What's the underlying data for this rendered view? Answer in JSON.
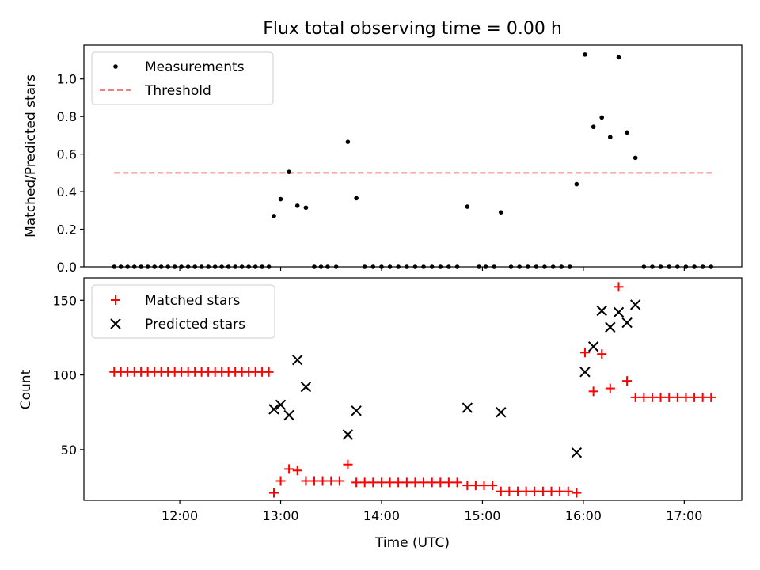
{
  "figure": {
    "title": "Flux total observing time = 0.00 h",
    "xlabel": "Time (UTC)"
  },
  "chart_data": [
    {
      "type": "scatter",
      "ylabel": "Matched/Predicted stars",
      "x_unit": "hours UTC",
      "xlim": [
        11.05,
        17.57
      ],
      "ylim": [
        0.0,
        1.18
      ],
      "yticks": [
        0.0,
        0.2,
        0.4,
        0.6,
        0.8,
        1.0
      ],
      "grid": false,
      "legend_position": "upper-left",
      "series": [
        {
          "name": "Measurements",
          "marker": "dot",
          "color": "#000000",
          "points": [
            [
              11.35,
              0.0
            ],
            [
              11.416,
              0.0
            ],
            [
              11.483,
              0.0
            ],
            [
              11.55,
              0.0
            ],
            [
              11.616,
              0.0
            ],
            [
              11.683,
              0.0
            ],
            [
              11.75,
              0.0
            ],
            [
              11.816,
              0.0
            ],
            [
              11.883,
              0.0
            ],
            [
              11.95,
              0.0
            ],
            [
              12.016,
              0.0
            ],
            [
              12.083,
              0.0
            ],
            [
              12.15,
              0.0
            ],
            [
              12.216,
              0.0
            ],
            [
              12.283,
              0.0
            ],
            [
              12.35,
              0.0
            ],
            [
              12.416,
              0.0
            ],
            [
              12.483,
              0.0
            ],
            [
              12.55,
              0.0
            ],
            [
              12.616,
              0.0
            ],
            [
              12.683,
              0.0
            ],
            [
              12.75,
              0.0
            ],
            [
              12.816,
              0.0
            ],
            [
              12.883,
              0.0
            ],
            [
              12.933,
              0.27
            ],
            [
              13.0,
              0.36
            ],
            [
              13.083,
              0.505
            ],
            [
              13.166,
              0.325
            ],
            [
              13.25,
              0.315
            ],
            [
              13.333,
              0.0
            ],
            [
              13.4,
              0.0
            ],
            [
              13.466,
              0.0
            ],
            [
              13.55,
              0.0
            ],
            [
              13.666,
              0.665
            ],
            [
              13.75,
              0.365
            ],
            [
              13.833,
              0.0
            ],
            [
              13.916,
              0.0
            ],
            [
              14.0,
              0.0
            ],
            [
              14.083,
              0.0
            ],
            [
              14.166,
              0.0
            ],
            [
              14.25,
              0.0
            ],
            [
              14.333,
              0.0
            ],
            [
              14.416,
              0.0
            ],
            [
              14.5,
              0.0
            ],
            [
              14.583,
              0.0
            ],
            [
              14.666,
              0.0
            ],
            [
              14.75,
              0.0
            ],
            [
              14.85,
              0.32
            ],
            [
              14.966,
              0.0
            ],
            [
              15.033,
              0.0
            ],
            [
              15.116,
              0.0
            ],
            [
              15.183,
              0.29
            ],
            [
              15.283,
              0.0
            ],
            [
              15.366,
              0.0
            ],
            [
              15.45,
              0.0
            ],
            [
              15.533,
              0.0
            ],
            [
              15.616,
              0.0
            ],
            [
              15.7,
              0.0
            ],
            [
              15.783,
              0.0
            ],
            [
              15.866,
              0.0
            ],
            [
              15.933,
              0.44
            ],
            [
              16.016,
              1.13
            ],
            [
              16.1,
              0.745
            ],
            [
              16.183,
              0.795
            ],
            [
              16.266,
              0.69
            ],
            [
              16.35,
              1.115
            ],
            [
              16.433,
              0.715
            ],
            [
              16.516,
              0.58
            ],
            [
              16.6,
              0.0
            ],
            [
              16.683,
              0.0
            ],
            [
              16.766,
              0.0
            ],
            [
              16.85,
              0.0
            ],
            [
              16.933,
              0.0
            ],
            [
              17.016,
              0.0
            ],
            [
              17.1,
              0.0
            ],
            [
              17.183,
              0.0
            ],
            [
              17.266,
              0.0
            ]
          ]
        },
        {
          "name": "Threshold",
          "type": "line",
          "style": "dashed",
          "color": "#f08080",
          "points": [
            [
              11.35,
              0.5
            ],
            [
              17.3,
              0.5
            ]
          ]
        }
      ]
    },
    {
      "type": "scatter",
      "ylabel": "Count",
      "x_unit": "hours UTC",
      "xlim": [
        11.05,
        17.57
      ],
      "ylim": [
        16,
        165
      ],
      "yticks": [
        50,
        100,
        150
      ],
      "xticks": [
        12,
        13,
        14,
        15,
        16,
        17
      ],
      "xtick_labels": [
        "12:00",
        "13:00",
        "14:00",
        "15:00",
        "16:00",
        "17:00"
      ],
      "grid": false,
      "legend_position": "upper-left",
      "series": [
        {
          "name": "Matched stars",
          "marker": "plus",
          "color": "#ff0000",
          "points": [
            [
              11.35,
              102
            ],
            [
              11.416,
              102
            ],
            [
              11.483,
              102
            ],
            [
              11.55,
              102
            ],
            [
              11.616,
              102
            ],
            [
              11.683,
              102
            ],
            [
              11.75,
              102
            ],
            [
              11.816,
              102
            ],
            [
              11.883,
              102
            ],
            [
              11.95,
              102
            ],
            [
              12.016,
              102
            ],
            [
              12.083,
              102
            ],
            [
              12.15,
              102
            ],
            [
              12.216,
              102
            ],
            [
              12.283,
              102
            ],
            [
              12.35,
              102
            ],
            [
              12.416,
              102
            ],
            [
              12.483,
              102
            ],
            [
              12.55,
              102
            ],
            [
              12.616,
              102
            ],
            [
              12.683,
              102
            ],
            [
              12.75,
              102
            ],
            [
              12.816,
              102
            ],
            [
              12.883,
              102
            ],
            [
              12.933,
              21
            ],
            [
              13.0,
              29
            ],
            [
              13.083,
              37
            ],
            [
              13.166,
              36
            ],
            [
              13.25,
              29
            ],
            [
              13.333,
              29
            ],
            [
              13.416,
              29
            ],
            [
              13.5,
              29
            ],
            [
              13.583,
              29
            ],
            [
              13.666,
              40
            ],
            [
              13.75,
              28
            ],
            [
              13.833,
              28
            ],
            [
              13.916,
              28
            ],
            [
              14.0,
              28
            ],
            [
              14.083,
              28
            ],
            [
              14.166,
              28
            ],
            [
              14.25,
              28
            ],
            [
              14.333,
              28
            ],
            [
              14.416,
              28
            ],
            [
              14.5,
              28
            ],
            [
              14.583,
              28
            ],
            [
              14.666,
              28
            ],
            [
              14.75,
              28
            ],
            [
              14.85,
              26
            ],
            [
              14.933,
              26
            ],
            [
              15.016,
              26
            ],
            [
              15.1,
              26
            ],
            [
              15.183,
              22
            ],
            [
              15.266,
              22
            ],
            [
              15.35,
              22
            ],
            [
              15.433,
              22
            ],
            [
              15.516,
              22
            ],
            [
              15.6,
              22
            ],
            [
              15.683,
              22
            ],
            [
              15.766,
              22
            ],
            [
              15.85,
              22
            ],
            [
              15.933,
              21
            ],
            [
              16.016,
              115
            ],
            [
              16.1,
              89
            ],
            [
              16.183,
              114
            ],
            [
              16.266,
              91
            ],
            [
              16.35,
              159
            ],
            [
              16.433,
              96
            ],
            [
              16.516,
              85
            ],
            [
              16.6,
              85
            ],
            [
              16.683,
              85
            ],
            [
              16.766,
              85
            ],
            [
              16.85,
              85
            ],
            [
              16.933,
              85
            ],
            [
              17.016,
              85
            ],
            [
              17.1,
              85
            ],
            [
              17.183,
              85
            ],
            [
              17.266,
              85
            ]
          ]
        },
        {
          "name": "Predicted stars",
          "marker": "x",
          "color": "#000000",
          "points": [
            [
              12.933,
              77
            ],
            [
              13.0,
              80
            ],
            [
              13.083,
              73
            ],
            [
              13.166,
              110
            ],
            [
              13.25,
              92
            ],
            [
              13.666,
              60
            ],
            [
              13.75,
              76
            ],
            [
              14.85,
              78
            ],
            [
              15.183,
              75
            ],
            [
              15.933,
              48
            ],
            [
              16.016,
              102
            ],
            [
              16.1,
              119
            ],
            [
              16.183,
              143
            ],
            [
              16.266,
              132
            ],
            [
              16.35,
              142
            ],
            [
              16.433,
              135
            ],
            [
              16.516,
              147
            ]
          ]
        }
      ]
    }
  ]
}
